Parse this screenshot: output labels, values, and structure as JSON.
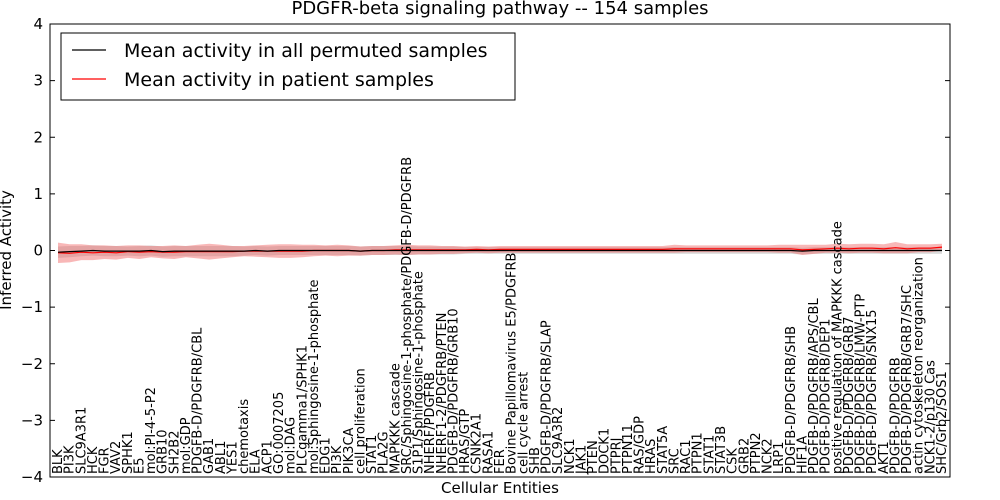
{
  "chart_data": {
    "type": "line",
    "title": "PDGFR-beta signaling pathway -- 154 samples",
    "xlabel": "Cellular Entities",
    "ylabel": "Inferred Activity",
    "ylim": [
      -4,
      4
    ],
    "yticks": [
      -4,
      -3,
      -2,
      -1,
      0,
      1,
      2,
      3,
      4
    ],
    "ytick_labels": [
      "−4",
      "−3",
      "−2",
      "−1",
      "0",
      "1",
      "2",
      "3",
      "4"
    ],
    "legend": {
      "placement": "top-left",
      "entries": [
        {
          "label": "Mean activity in all permuted samples",
          "color": "#000000"
        },
        {
          "label": "Mean activity in patient samples",
          "color": "#ff0000"
        }
      ]
    },
    "categories": [
      "BLK",
      "PI3K",
      "SLC9A3R1",
      "HCK",
      "FGR",
      "VAV2",
      "SPHK1",
      "E5",
      "mol:PI-4-5-P2",
      "GRB10",
      "SH2B2",
      "mol:GDP",
      "PDGFB-D/PDGFRB/CBL",
      "GAB1",
      "ABL1",
      "YES1",
      "chemotaxis",
      "ELA",
      "ACP1",
      "GO:0007205",
      "mol:DAG",
      "PLCgamma1/SPHK1",
      "mol:Sphingosine-1-phosphate",
      "EDG1",
      "PI3K",
      "PIK3CA",
      "cell proliferation",
      "STAT1",
      "PLA2G",
      "MAPKKK cascade",
      "SRC/Sphingosine-1-phosphate/PDGFB-D/PDGFRB",
      "S1P1/Sphingosine-1-phosphate",
      "NHERF/PDGFRB",
      "NHERF1-2/PDGFRB/PTEN",
      "PDGFB-D/PDGFRB/GRB10",
      "HRAS/GTP",
      "CSNK2A1",
      "RASA1",
      "FER",
      "Bovine Papillomavirus E5/PDGFRB",
      "cell cycle arrest",
      "SHB",
      "PDGFB-D/PDGFRB/SLAP",
      "SLC9A3R2",
      "NCK1",
      "JAK1",
      "PTEN",
      "DOCK1",
      "PTPRJ",
      "PTPN11",
      "RAS/GDP",
      "HRAS",
      "STAT5A",
      "SRC",
      "RAC1",
      "PTPN1",
      "STAT1",
      "STAT3B",
      "CSK",
      "GRB2",
      "PTPN2",
      "NCK2",
      "LRP1",
      "PDGFB-D/PDGFRB/SHB",
      "HIF1A",
      "PDGFB-D/PDGFRB/APS/CBL",
      "PDGFB-D/PDGFRB/DEP1",
      "positive regulation of MAPKKK cascade",
      "PDGFB-D/PDGFRB/GRB7",
      "PDGFB-D/PDGFRB/LMW-PTP",
      "PDGFB-D/PDGFRB/SNX15",
      "AKT1",
      "PDGFB-D/PDGFRB",
      "PDGFB-D/PDGFRB/GRB7/SHC",
      "actin cytoskeleton reorganization",
      "NCK1-2/p130 Cas",
      "SHC/Grb2/SOS1"
    ],
    "patient_mean": [
      -0.04,
      -0.05,
      -0.03,
      -0.04,
      -0.03,
      -0.04,
      -0.02,
      -0.03,
      -0.02,
      -0.03,
      -0.03,
      -0.02,
      -0.02,
      -0.02,
      -0.02,
      -0.02,
      -0.01,
      -0.01,
      -0.01,
      -0.01,
      -0.01,
      -0.01,
      0.0,
      0.0,
      0.0,
      0.0,
      -0.01,
      0.0,
      0.0,
      0.01,
      0.01,
      0.01,
      0.01,
      0.01,
      0.01,
      0.01,
      0.02,
      0.01,
      0.02,
      0.02,
      0.02,
      0.02,
      0.02,
      0.02,
      0.02,
      0.02,
      0.02,
      0.02,
      0.02,
      0.02,
      0.02,
      0.02,
      0.02,
      0.03,
      0.03,
      0.03,
      0.03,
      0.03,
      0.03,
      0.03,
      0.03,
      0.03,
      0.03,
      0.03,
      0.01,
      0.02,
      0.03,
      0.04,
      0.03,
      0.04,
      0.04,
      0.03,
      0.05,
      0.03,
      0.04,
      0.04,
      0.06
    ],
    "patient_band": [
      0.18,
      0.16,
      0.14,
      0.13,
      0.12,
      0.12,
      0.11,
      0.12,
      0.1,
      0.11,
      0.12,
      0.1,
      0.12,
      0.14,
      0.12,
      0.1,
      0.09,
      0.1,
      0.11,
      0.12,
      0.12,
      0.11,
      0.1,
      0.09,
      0.1,
      0.09,
      0.08,
      0.08,
      0.08,
      0.08,
      0.09,
      0.08,
      0.08,
      0.07,
      0.07,
      0.06,
      0.06,
      0.06,
      0.06,
      0.06,
      0.06,
      0.06,
      0.06,
      0.06,
      0.06,
      0.06,
      0.06,
      0.06,
      0.06,
      0.06,
      0.06,
      0.06,
      0.06,
      0.07,
      0.06,
      0.06,
      0.06,
      0.06,
      0.06,
      0.06,
      0.06,
      0.06,
      0.07,
      0.07,
      0.09,
      0.08,
      0.07,
      0.08,
      0.08,
      0.08,
      0.08,
      0.08,
      0.1,
      0.08,
      0.07,
      0.07,
      0.06
    ],
    "permuted_mean": [
      -0.03,
      -0.02,
      -0.01,
      0.0,
      -0.01,
      -0.01,
      -0.01,
      -0.01,
      0.0,
      -0.02,
      -0.01,
      -0.01,
      -0.01,
      -0.01,
      -0.01,
      -0.01,
      -0.01,
      0.0,
      -0.01,
      0.0,
      0.0,
      0.0,
      0.0,
      0.0,
      0.0,
      0.0,
      -0.01,
      0.0,
      0.0,
      0.0,
      0.0,
      0.0,
      0.0,
      0.0,
      0.0,
      0.0,
      0.0,
      0.0,
      0.0,
      0.0,
      0.0,
      0.0,
      0.0,
      0.0,
      0.0,
      0.0,
      0.0,
      0.0,
      0.0,
      0.0,
      0.0,
      0.0,
      0.0,
      0.0,
      0.0,
      0.0,
      0.0,
      0.0,
      0.0,
      0.0,
      0.0,
      0.0,
      0.0,
      0.0,
      -0.01,
      0.0,
      0.0,
      0.0,
      0.0,
      0.0,
      0.0,
      0.0,
      0.0,
      0.0,
      0.0,
      0.0,
      0.0
    ],
    "permuted_band": [
      0.1,
      0.1,
      0.09,
      0.09,
      0.09,
      0.09,
      0.08,
      0.09,
      0.09,
      0.09,
      0.09,
      0.09,
      0.09,
      0.09,
      0.09,
      0.09,
      0.08,
      0.08,
      0.08,
      0.08,
      0.08,
      0.08,
      0.08,
      0.08,
      0.08,
      0.08,
      0.08,
      0.08,
      0.08,
      0.08,
      0.08,
      0.07,
      0.07,
      0.07,
      0.07,
      0.06,
      0.06,
      0.06,
      0.06,
      0.06,
      0.06,
      0.06,
      0.06,
      0.06,
      0.06,
      0.06,
      0.06,
      0.06,
      0.06,
      0.06,
      0.06,
      0.06,
      0.06,
      0.06,
      0.06,
      0.06,
      0.06,
      0.06,
      0.06,
      0.06,
      0.06,
      0.06,
      0.06,
      0.06,
      0.06,
      0.06,
      0.06,
      0.06,
      0.06,
      0.06,
      0.06,
      0.06,
      0.06,
      0.06,
      0.06,
      0.06,
      0.06
    ]
  }
}
